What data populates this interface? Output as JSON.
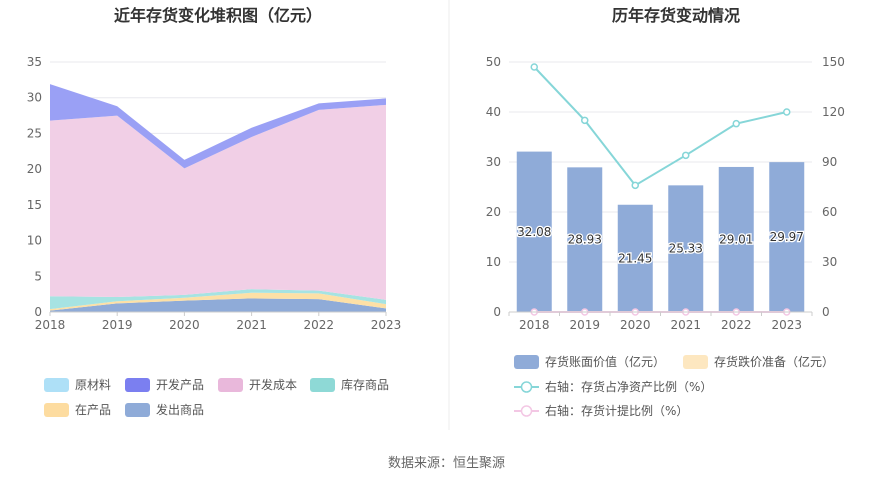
{
  "source_label": "数据来源：恒生聚源",
  "chart_data": [
    {
      "type": "area",
      "title": "近年存货变化堆积图（亿元）",
      "x": [
        "2018",
        "2019",
        "2020",
        "2021",
        "2022",
        "2023"
      ],
      "ylim": [
        0,
        35
      ],
      "yticks": [
        "0",
        "5",
        "10",
        "15",
        "20",
        "25",
        "30",
        "35"
      ],
      "stacked": true,
      "grid": true,
      "legend_position": "bottom",
      "series": [
        {
          "name": "发出商品",
          "color": "#8fabd8",
          "values": [
            0.2,
            1.2,
            1.6,
            1.9,
            1.8,
            0.5
          ]
        },
        {
          "name": "在产品",
          "color": "#fde0a6",
          "values": [
            0.2,
            0.3,
            0.4,
            0.8,
            0.8,
            0.6
          ]
        },
        {
          "name": "库存商品",
          "color": "#a6e3e2",
          "values": [
            1.8,
            0.6,
            0.4,
            0.5,
            0.4,
            0.6
          ]
        },
        {
          "name": "开发成本",
          "color": "#f1cfe6",
          "values": [
            24.6,
            25.4,
            17.7,
            21.3,
            25.3,
            27.3
          ]
        },
        {
          "name": "开发产品",
          "color": "#9aa0f5",
          "values": [
            5.1,
            1.3,
            1.2,
            1.3,
            0.9,
            0.9
          ]
        },
        {
          "name": "原材料",
          "color": "#aee0f7",
          "values": [
            0.0,
            0.0,
            0.0,
            0.0,
            0.0,
            0.0
          ]
        }
      ],
      "legend": [
        {
          "name": "原材料",
          "color": "#aee0f7"
        },
        {
          "name": "开发产品",
          "color": "#7b7ff0"
        },
        {
          "name": "开发成本",
          "color": "#e9b8db"
        },
        {
          "name": "库存商品",
          "color": "#8ed9d6"
        },
        {
          "name": "在产品",
          "color": "#fddca0"
        },
        {
          "name": "发出商品",
          "color": "#8fabd8"
        }
      ]
    },
    {
      "type": "bar",
      "title": "历年存货变动情况",
      "categories": [
        "2018",
        "2019",
        "2020",
        "2021",
        "2022",
        "2023"
      ],
      "ylim_left": [
        0,
        50
      ],
      "yticks_left": [
        "0",
        "10",
        "20",
        "30",
        "40",
        "50"
      ],
      "ylim_right": [
        0,
        150
      ],
      "yticks_right": [
        "0",
        "30",
        "60",
        "90",
        "120",
        "150"
      ],
      "grid": true,
      "legend_position": "bottom",
      "series": [
        {
          "name": "存货账面价值（亿元）",
          "type": "bar",
          "axis": "left",
          "color": "#8fabd8",
          "values": [
            32.08,
            28.93,
            21.45,
            25.33,
            29.01,
            29.97
          ],
          "labels": [
            "32.08",
            "28.93",
            "21.45",
            "25.33",
            "29.01",
            "29.97"
          ]
        },
        {
          "name": "存货跌价准备（亿元）",
          "type": "bar",
          "axis": "left",
          "color": "#fde7c0",
          "values": [
            0,
            0,
            0,
            0,
            0,
            0
          ]
        },
        {
          "name": "右轴：存货占净资产比例（%）",
          "type": "line",
          "axis": "right",
          "color": "#86d6d8",
          "values": [
            147,
            115,
            76,
            94,
            113,
            120
          ]
        },
        {
          "name": "右轴：存货计提比例（%）",
          "type": "line",
          "axis": "right",
          "color": "#f3c7e4",
          "values": [
            0,
            0,
            0,
            0,
            0,
            0
          ]
        }
      ]
    }
  ]
}
